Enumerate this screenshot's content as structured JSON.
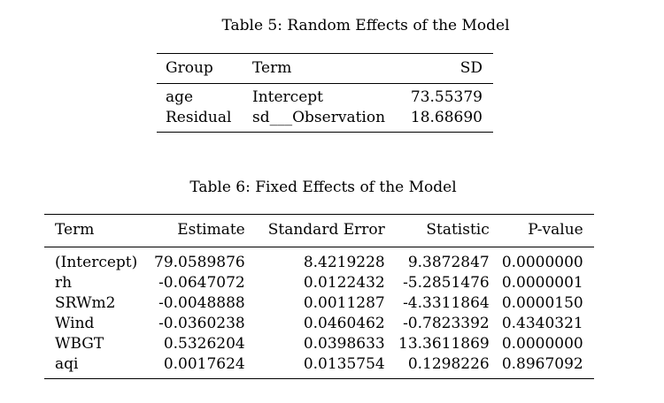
{
  "table5": {
    "caption": "Table 5: Random Effects of the Model",
    "headers": [
      "Group",
      "Term",
      "SD"
    ],
    "rows": [
      [
        "age",
        "Intercept",
        "73.55379"
      ],
      [
        "Residual",
        "sd___Observation",
        "18.68690"
      ]
    ]
  },
  "table6": {
    "caption": "Table 6: Fixed Effects of the Model",
    "headers": [
      "Term",
      "Estimate",
      "Standard Error",
      "Statistic",
      "P-value"
    ],
    "rows": [
      [
        "(Intercept)",
        "79.0589876",
        "8.4219228",
        "9.3872847",
        "0.0000000"
      ],
      [
        "rh",
        "-0.0647072",
        "0.0122432",
        "-5.2851476",
        "0.0000001"
      ],
      [
        "SRWm2",
        "-0.0048888",
        "0.0011287",
        "-4.3311864",
        "0.0000150"
      ],
      [
        "Wind",
        "-0.0360238",
        "0.0460462",
        "-0.7823392",
        "0.4340321"
      ],
      [
        "WBGT",
        "0.5326204",
        "0.0398633",
        "13.3611869",
        "0.0000000"
      ],
      [
        "aqi",
        "0.0017624",
        "0.0135754",
        "0.1298226",
        "0.8967092"
      ]
    ]
  }
}
